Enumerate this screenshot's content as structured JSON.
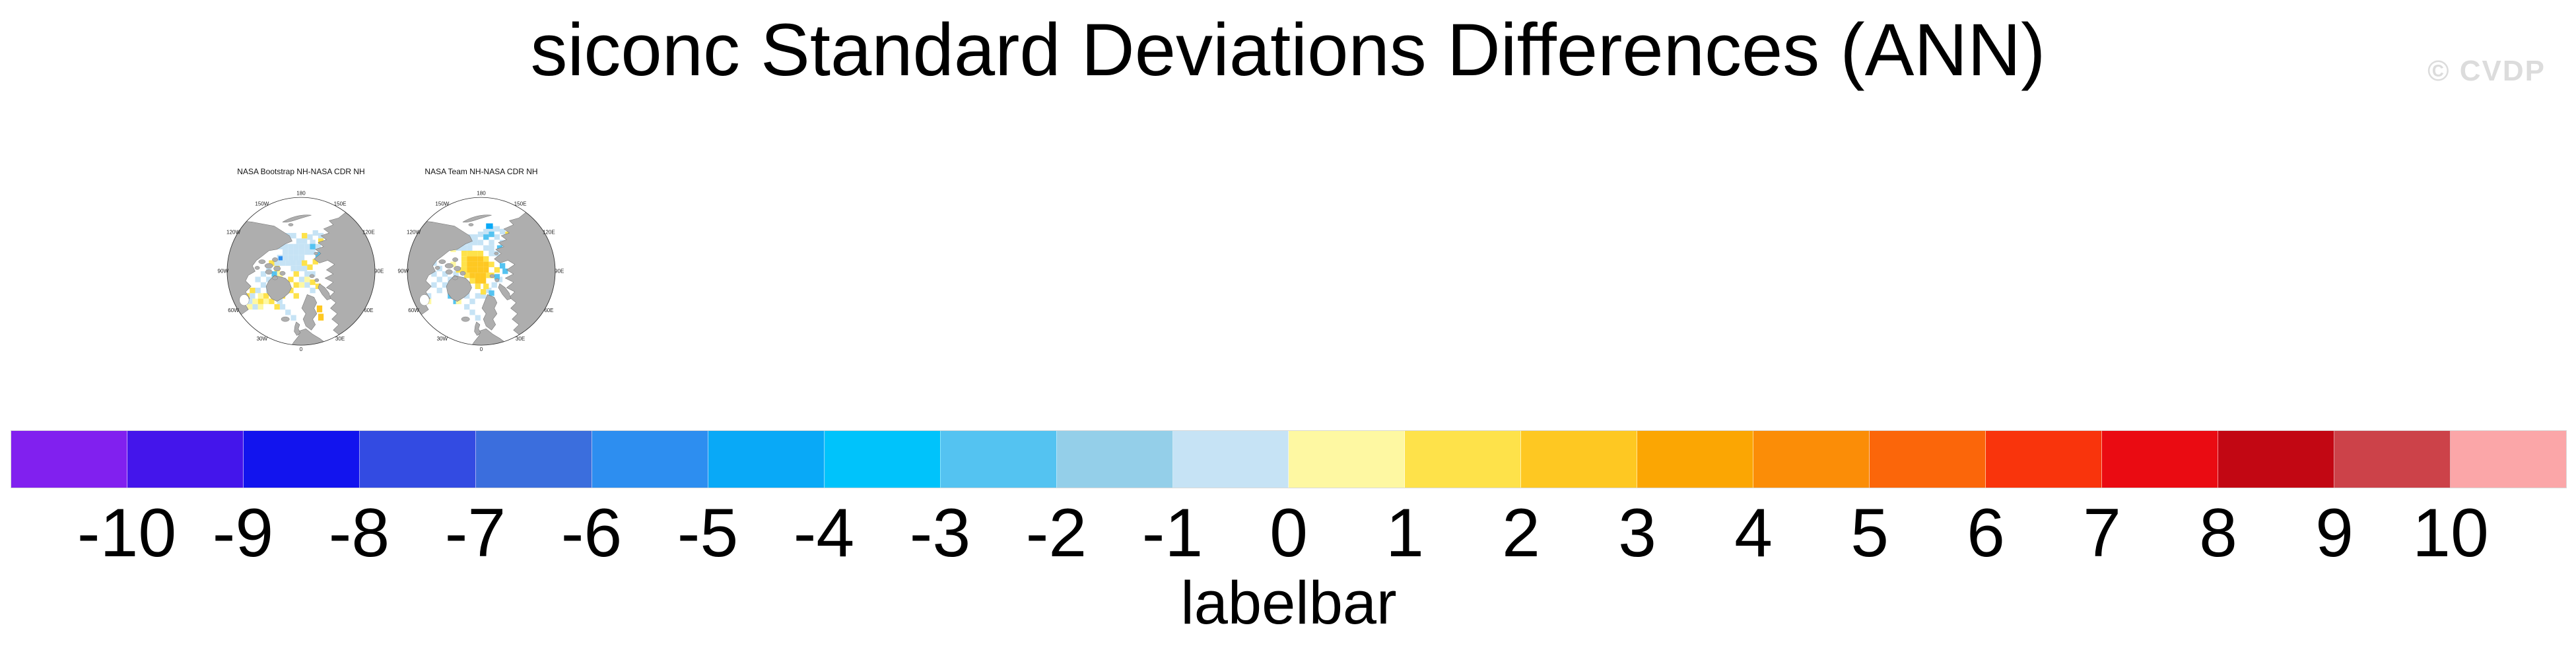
{
  "watermark": "© CVDP",
  "chart_data": {
    "type": "heatmap",
    "subtype": "north-polar-stereographic-difference-maps",
    "variable": "siconc",
    "statistic": "Standard Deviations Differences",
    "season": "ANN",
    "title": "siconc Standard Deviations Differences (ANN)",
    "lon_labels": [
      "180",
      "150E",
      "120E",
      "90E",
      "60E",
      "30E",
      "0",
      "30W",
      "60W",
      "90W",
      "120W",
      "150W"
    ],
    "colorbar": {
      "label": "labelbar",
      "tick_labels": [
        "-10",
        "-9",
        "-8",
        "-7",
        "-6",
        "-5",
        "-4",
        "-3",
        "-2",
        "-1",
        "0",
        "1",
        "2",
        "3",
        "4",
        "5",
        "6",
        "7",
        "8",
        "9",
        "10"
      ],
      "levels": [
        -10,
        -9,
        -8,
        -7,
        -6,
        -5,
        -4,
        -3,
        -2,
        -1,
        0,
        1,
        2,
        3,
        4,
        5,
        6,
        7,
        8,
        9,
        10
      ],
      "colors": [
        "#8120EF",
        "#4415EB",
        "#1214EE",
        "#334BE2",
        "#3B6EDD",
        "#2D8EF0",
        "#09A9F7",
        "#00C3FB",
        "#54C3F1",
        "#94CFE9",
        "#C6E3F5",
        "#FEF8A2",
        "#FEE24A",
        "#FEC822",
        "#FBA603",
        "#FB8D07",
        "#FB660A",
        "#F9340C",
        "#EA0B12",
        "#C20713",
        "#CC4249",
        "#FBA6A8"
      ]
    },
    "cell_colors": {
      "lb": "#C6E3F5",
      "py": "#FEF8A2",
      "y": "#FEE24A",
      "g": "#FEC822",
      "mb": "#54C3F1",
      "db": "#2D8EF0",
      "db2": "#09A9F7"
    },
    "land_color": "#AEAEAE",
    "coast_color": "#6F6F6F",
    "panels": [
      {
        "title": "NASA Bootstrap NH-NASA CDR NH",
        "cells": [
          [
            100,
            94,
            "lb"
          ],
          [
            108,
            94,
            "lb"
          ],
          [
            116,
            94,
            "lb"
          ],
          [
            124,
            94,
            "lb"
          ],
          [
            132,
            94,
            "lb"
          ],
          [
            140,
            94,
            "lb"
          ],
          [
            108,
            102,
            "lb"
          ],
          [
            116,
            102,
            "lb"
          ],
          [
            124,
            102,
            "lb"
          ],
          [
            132,
            102,
            "lb"
          ],
          [
            140,
            102,
            "lb"
          ],
          [
            148,
            102,
            "lb"
          ],
          [
            100,
            110,
            "lb"
          ],
          [
            108,
            110,
            "lb"
          ],
          [
            116,
            110,
            "lb"
          ],
          [
            124,
            110,
            "lb"
          ],
          [
            132,
            110,
            "lb"
          ],
          [
            96,
            118,
            "lb"
          ],
          [
            104,
            118,
            "lb"
          ],
          [
            112,
            118,
            "lb"
          ],
          [
            120,
            118,
            "lb"
          ],
          [
            128,
            118,
            "lb"
          ],
          [
            120,
            126,
            "lb"
          ],
          [
            128,
            126,
            "lb"
          ],
          [
            136,
            126,
            "lb"
          ],
          [
            140,
            134,
            "lb"
          ],
          [
            148,
            134,
            "lb"
          ],
          [
            132,
            142,
            "lb"
          ],
          [
            140,
            150,
            "lb"
          ],
          [
            148,
            158,
            "lb"
          ],
          [
            112,
            78,
            "lb"
          ],
          [
            120,
            78,
            "lb"
          ],
          [
            128,
            86,
            "lb"
          ],
          [
            136,
            86,
            "lb"
          ],
          [
            144,
            80,
            "lb"
          ],
          [
            152,
            74,
            "lb"
          ],
          [
            160,
            78,
            "lb"
          ],
          [
            148,
            88,
            "lb"
          ],
          [
            156,
            94,
            "lb"
          ],
          [
            164,
            100,
            "lb"
          ],
          [
            84,
            126,
            "lb"
          ],
          [
            76,
            134,
            "lb"
          ],
          [
            68,
            142,
            "lb"
          ],
          [
            84,
            142,
            "lb"
          ],
          [
            76,
            150,
            "lb"
          ],
          [
            68,
            158,
            "lb"
          ],
          [
            60,
            166,
            "lb"
          ],
          [
            84,
            158,
            "lb"
          ],
          [
            92,
            166,
            "lb"
          ],
          [
            100,
            174,
            "lb"
          ],
          [
            56,
            174,
            "lb"
          ],
          [
            64,
            182,
            "lb"
          ],
          [
            104,
            182,
            "lb"
          ],
          [
            112,
            190,
            "lb"
          ],
          [
            120,
            198,
            "lb"
          ],
          [
            148,
            94,
            "mb"
          ],
          [
            92,
            134,
            "mb"
          ],
          [
            156,
            106,
            "mb"
          ],
          [
            102,
            112,
            "db",
            6,
            6
          ],
          [
            104,
            86,
            "y"
          ],
          [
            96,
            92,
            "y"
          ],
          [
            136,
            78,
            "y"
          ],
          [
            160,
            86,
            "y"
          ],
          [
            168,
            92,
            "y"
          ],
          [
            152,
            116,
            "y"
          ],
          [
            144,
            124,
            "y"
          ],
          [
            136,
            118,
            "y"
          ],
          [
            124,
            134,
            "y"
          ],
          [
            116,
            142,
            "y"
          ],
          [
            108,
            150,
            "y"
          ],
          [
            124,
            150,
            "y"
          ],
          [
            116,
            158,
            "y"
          ],
          [
            124,
            166,
            "y"
          ],
          [
            100,
            142,
            "y"
          ],
          [
            92,
            150,
            "y"
          ],
          [
            80,
            166,
            "y"
          ],
          [
            72,
            174,
            "y"
          ],
          [
            96,
            126,
            "y"
          ],
          [
            88,
            118,
            "y"
          ],
          [
            148,
            146,
            "y"
          ],
          [
            156,
            152,
            "y"
          ],
          [
            60,
            158,
            "y"
          ],
          [
            52,
            166,
            "y"
          ],
          [
            88,
            174,
            "y"
          ],
          [
            96,
            182,
            "y"
          ],
          [
            104,
            166,
            "y"
          ],
          [
            96,
            86,
            "py"
          ],
          [
            72,
            166,
            "py"
          ],
          [
            64,
            174,
            "py"
          ],
          [
            80,
            174,
            "py"
          ],
          [
            56,
            182,
            "py"
          ],
          [
            72,
            182,
            "py"
          ],
          [
            100,
            134,
            "py"
          ],
          [
            92,
            142,
            "py"
          ],
          [
            108,
            158,
            "py"
          ],
          [
            132,
            150,
            "py"
          ],
          [
            140,
            142,
            "py"
          ],
          [
            164,
            108,
            "py"
          ],
          [
            158,
            184,
            "g",
            8,
            10
          ],
          [
            160,
            196,
            "g",
            8,
            10
          ]
        ]
      },
      {
        "title": "NASA Team NH-NASA CDR NH",
        "cells": [
          [
            98,
            80,
            "lb"
          ],
          [
            106,
            80,
            "lb"
          ],
          [
            114,
            80,
            "lb"
          ],
          [
            122,
            80,
            "lb"
          ],
          [
            130,
            76,
            "lb"
          ],
          [
            138,
            72,
            "lb"
          ],
          [
            146,
            68,
            "lb"
          ],
          [
            154,
            68,
            "lb"
          ],
          [
            162,
            72,
            "lb"
          ],
          [
            106,
            88,
            "lb"
          ],
          [
            114,
            88,
            "lb"
          ],
          [
            122,
            88,
            "lb"
          ],
          [
            130,
            88,
            "lb"
          ],
          [
            154,
            80,
            "lb"
          ],
          [
            162,
            88,
            "lb"
          ],
          [
            146,
            88,
            "lb"
          ],
          [
            138,
            96,
            "lb"
          ],
          [
            146,
            96,
            "lb"
          ],
          [
            154,
            104,
            "lb"
          ],
          [
            162,
            112,
            "lb"
          ],
          [
            98,
            96,
            "lb"
          ],
          [
            106,
            96,
            "lb"
          ],
          [
            114,
            96,
            "lb"
          ],
          [
            146,
            104,
            "lb"
          ],
          [
            62,
            118,
            "lb"
          ],
          [
            70,
            126,
            "lb"
          ],
          [
            62,
            134,
            "lb"
          ],
          [
            70,
            142,
            "lb"
          ],
          [
            78,
            134,
            "lb"
          ],
          [
            78,
            150,
            "lb"
          ],
          [
            86,
            158,
            "lb"
          ],
          [
            70,
            158,
            "lb"
          ],
          [
            94,
            150,
            "lb"
          ],
          [
            86,
            142,
            "lb"
          ],
          [
            94,
            134,
            "lb"
          ],
          [
            102,
            142,
            "lb"
          ],
          [
            102,
            158,
            "lb"
          ],
          [
            94,
            166,
            "lb"
          ],
          [
            110,
            166,
            "lb"
          ],
          [
            118,
            174,
            "lb"
          ],
          [
            110,
            182,
            "lb"
          ],
          [
            126,
            166,
            "lb"
          ],
          [
            134,
            166,
            "lb"
          ],
          [
            142,
            158,
            "lb"
          ],
          [
            150,
            150,
            "lb"
          ],
          [
            158,
            142,
            "lb"
          ],
          [
            62,
            150,
            "lb"
          ],
          [
            54,
            166,
            "lb"
          ],
          [
            118,
            190,
            "lb"
          ],
          [
            126,
            198,
            "lb"
          ],
          [
            138,
            80,
            "mb"
          ],
          [
            146,
            76,
            "mb"
          ],
          [
            158,
            96,
            "mb"
          ],
          [
            166,
            104,
            "mb"
          ],
          [
            162,
            122,
            "mb"
          ],
          [
            154,
            138,
            "mb"
          ],
          [
            146,
            162,
            "mb"
          ],
          [
            86,
            166,
            "mb"
          ],
          [
            94,
            174,
            "mb"
          ],
          [
            166,
            130,
            "mb"
          ],
          [
            142,
            64,
            "db2",
            10,
            8
          ],
          [
            106,
            104,
            "y"
          ],
          [
            114,
            104,
            "y"
          ],
          [
            122,
            104,
            "y"
          ],
          [
            130,
            104,
            "y"
          ],
          [
            106,
            112,
            "y"
          ],
          [
            106,
            120,
            "y"
          ],
          [
            106,
            128,
            "y"
          ],
          [
            110,
            136,
            "y"
          ],
          [
            118,
            144,
            "y"
          ],
          [
            126,
            152,
            "y"
          ],
          [
            138,
            112,
            "y"
          ],
          [
            146,
            120,
            "y"
          ],
          [
            142,
            136,
            "y"
          ],
          [
            138,
            152,
            "y"
          ],
          [
            134,
            160,
            "y"
          ],
          [
            98,
            128,
            "y"
          ],
          [
            154,
            128,
            "y"
          ],
          [
            146,
            136,
            "y"
          ],
          [
            170,
            76,
            "y",
            8,
            6
          ],
          [
            114,
            112,
            "g"
          ],
          [
            122,
            112,
            "g"
          ],
          [
            130,
            112,
            "g"
          ],
          [
            114,
            120,
            "g"
          ],
          [
            122,
            120,
            "g"
          ],
          [
            130,
            120,
            "g"
          ],
          [
            138,
            120,
            "g"
          ],
          [
            114,
            128,
            "g"
          ],
          [
            122,
            128,
            "g"
          ],
          [
            130,
            128,
            "g"
          ],
          [
            138,
            128,
            "g"
          ],
          [
            118,
            136,
            "g"
          ],
          [
            126,
            136,
            "g"
          ],
          [
            134,
            136,
            "g"
          ],
          [
            126,
            144,
            "g"
          ],
          [
            134,
            144,
            "g"
          ],
          [
            98,
            88,
            "py"
          ],
          [
            90,
            98,
            "py"
          ],
          [
            170,
            96,
            "py"
          ],
          [
            98,
            174,
            "py"
          ],
          [
            54,
            174,
            "py"
          ],
          [
            90,
            120,
            "py"
          ]
        ]
      }
    ]
  }
}
